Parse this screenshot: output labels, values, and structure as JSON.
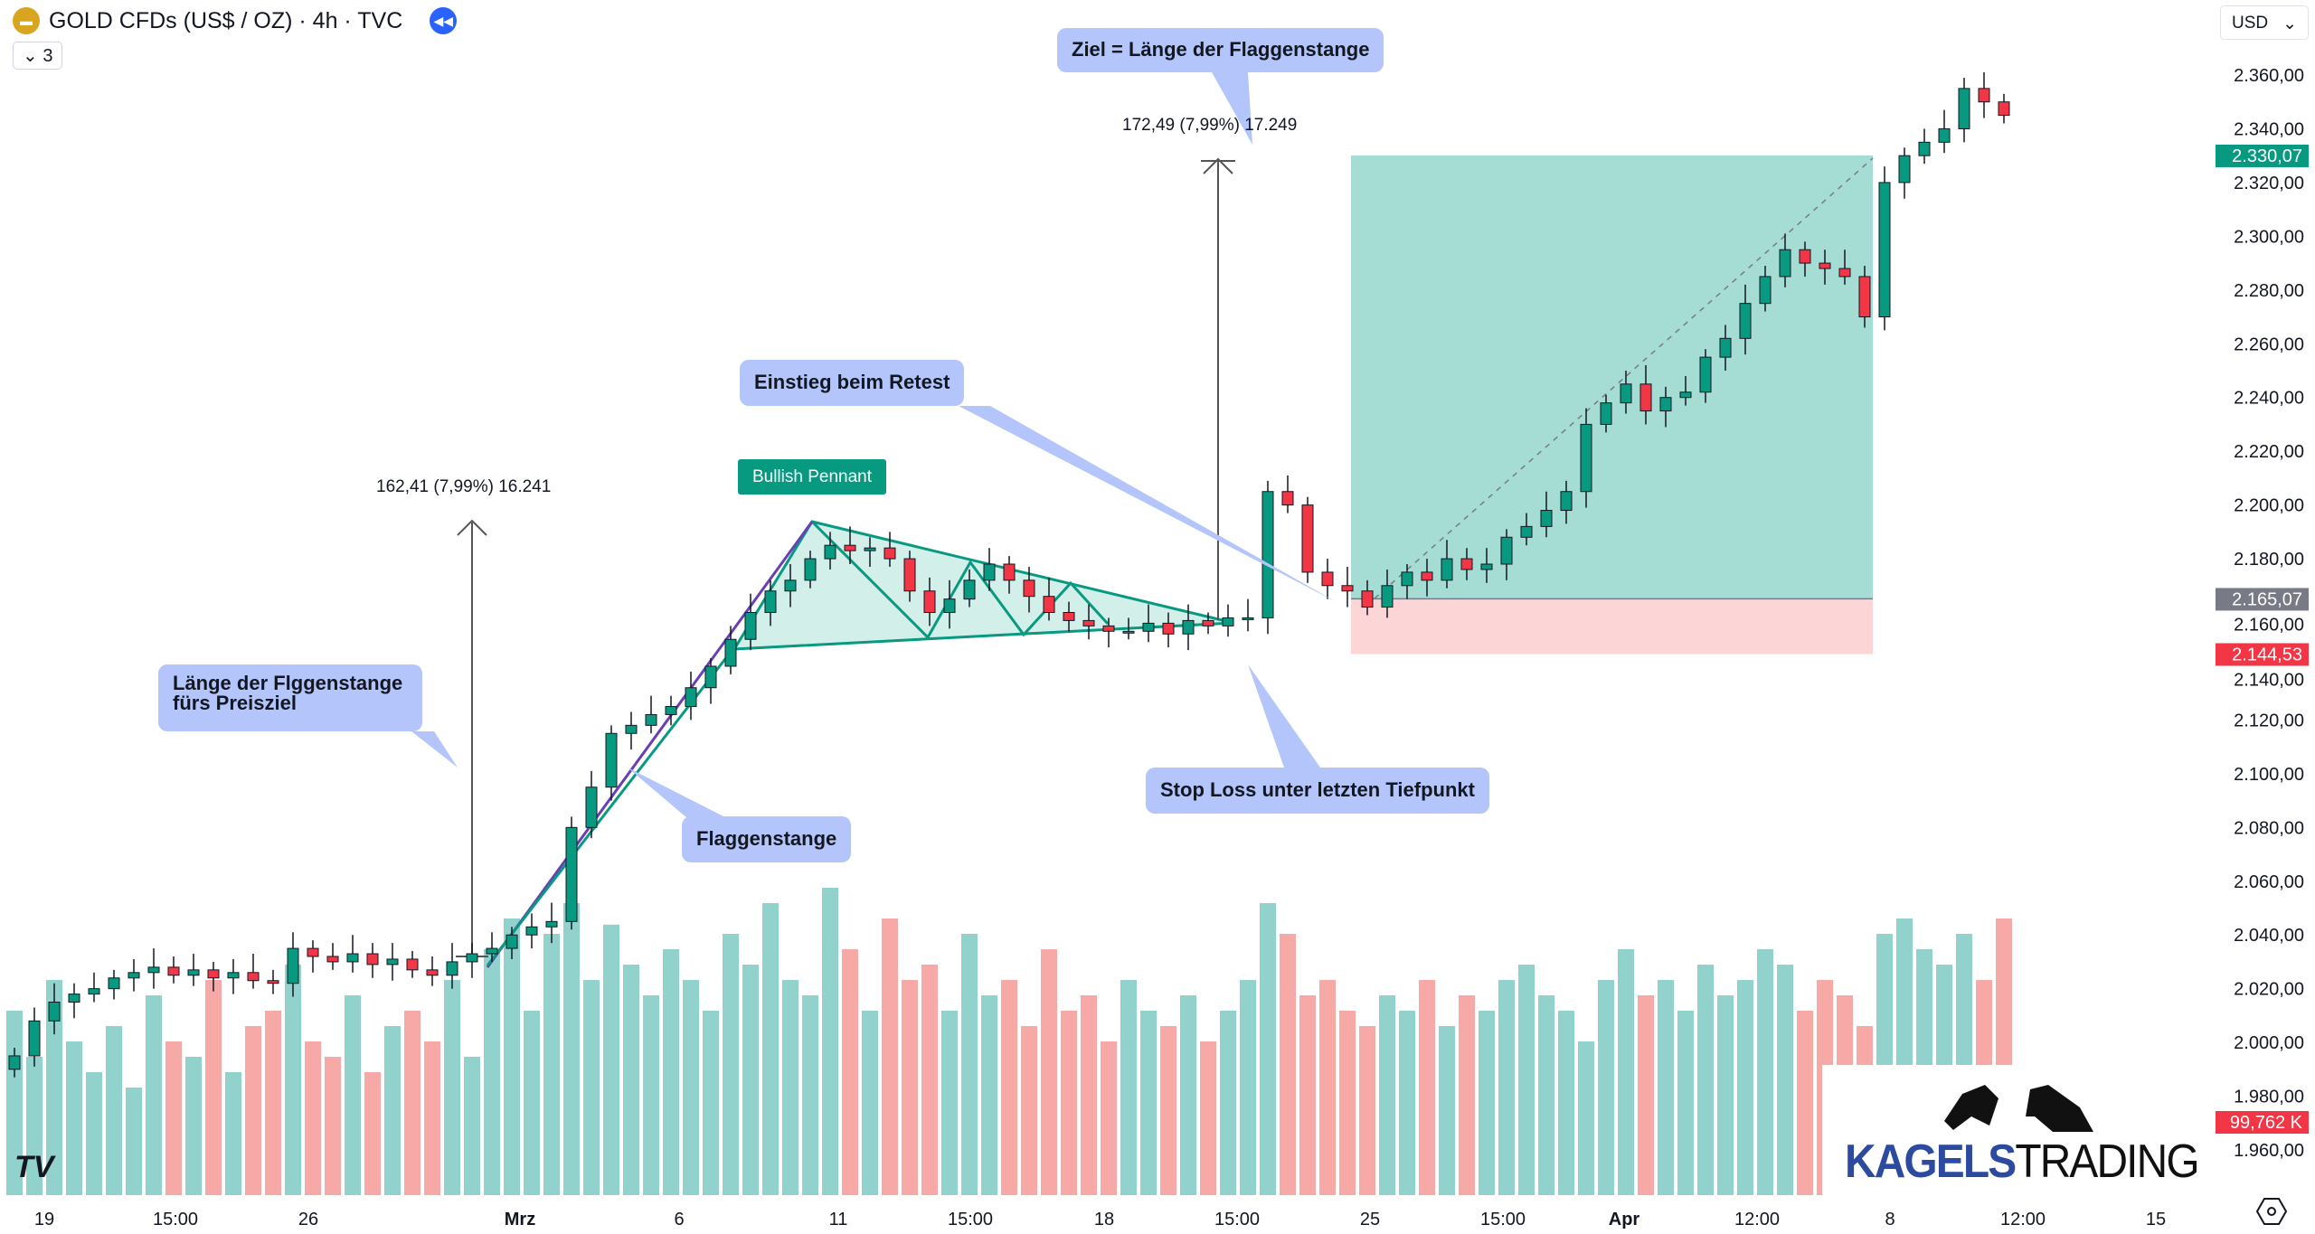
{
  "header": {
    "title": "GOLD CFDs (US$ / OZ) · 4h · TVC",
    "indicator_count": "3",
    "currency": "USD",
    "symbol_icon": "gold-bars-icon",
    "replay_icon": "rewind-icon"
  },
  "colors": {
    "up": "#089981",
    "down": "#f23645",
    "vol_up": "#92d2cc",
    "vol_down": "#f7a9a7",
    "target_zone": "#a5dcd4",
    "stop_zone": "#fcd6d6",
    "callout": "#b3c5fb",
    "pole": "#6a3fb5"
  },
  "annotations": {
    "target": "Ziel = Länge der Flaggenstange",
    "entry": "Einstieg beim Retest",
    "pole_length": "Länge der Flggenstange fürs Preisziel",
    "pole": "Flaggenstange",
    "stop": "Stop Loss unter letzten Tiefpunkt",
    "pattern": "Bullish Pennant",
    "measure1": "162,41 (7,99%) 16.241",
    "measure2": "172,49 (7,99%) 17.249"
  },
  "logo": {
    "part1": "KAGELS",
    "part2": "TRADING"
  },
  "chart_data": {
    "type": "candlestick",
    "ylim": [
      1950,
      2370
    ],
    "y_ticks": [
      "2.360,00",
      "2.340,00",
      "2.320,00",
      "2.300,00",
      "2.280,00",
      "2.260,00",
      "2.240,00",
      "2.220,00",
      "2.200,00",
      "2.180,00",
      "2.160,00",
      "2.140,00",
      "2.120,00",
      "2.100,00",
      "2.080,00",
      "2.060,00",
      "2.040,00",
      "2.020,00",
      "2.000,00",
      "1.980,00",
      "1.960,00"
    ],
    "y_tick_values": [
      2360,
      2340,
      2320,
      2300,
      2280,
      2260,
      2240,
      2220,
      2200,
      2180,
      2160,
      2140,
      2120,
      2100,
      2080,
      2060,
      2040,
      2020,
      2000,
      1980,
      1960
    ],
    "x_ticks": [
      "19",
      "15:00",
      "26",
      "Mrz",
      "6",
      "11",
      "15:00",
      "18",
      "15:00",
      "25",
      "15:00",
      "Apr",
      "12:00",
      "8",
      "12:00",
      "15"
    ],
    "price_badges": [
      {
        "value": 2330.07,
        "label": "2.330,07",
        "color": "#089981"
      },
      {
        "value": 2165.07,
        "label": "2.165,07",
        "color": "#787b86"
      },
      {
        "value": 2144.53,
        "label": "2.144,53",
        "color": "#f23645"
      }
    ],
    "volume_badge": "99,762 K",
    "closes": [
      1995,
      2008,
      2015,
      2018,
      2020,
      2024,
      2026,
      2028,
      2025,
      2027,
      2024,
      2026,
      2023,
      2022,
      2035,
      2032,
      2030,
      2033,
      2029,
      2031,
      2027,
      2025,
      2030,
      2033,
      2035,
      2040,
      2043,
      2045,
      2080,
      2095,
      2115,
      2118,
      2122,
      2125,
      2132,
      2140,
      2150,
      2160,
      2168,
      2172,
      2180,
      2185,
      2183,
      2184,
      2180,
      2168,
      2160,
      2165,
      2172,
      2178,
      2172,
      2166,
      2160,
      2157,
      2155,
      2153,
      2153,
      2156,
      2152,
      2157,
      2155,
      2158,
      2158,
      2205,
      2200,
      2175,
      2170,
      2168,
      2162,
      2170,
      2175,
      2172,
      2180,
      2176,
      2178,
      2188,
      2192,
      2198,
      2205,
      2230,
      2238,
      2245,
      2235,
      2240,
      2242,
      2255,
      2262,
      2275,
      2285,
      2295,
      2290,
      2288,
      2285,
      2270,
      2320,
      2330,
      2335,
      2340,
      2355,
      2350,
      2345
    ],
    "volumes": [
      60,
      45,
      70,
      50,
      40,
      55,
      35,
      65,
      50,
      45,
      70,
      40,
      55,
      60,
      75,
      50,
      45,
      65,
      40,
      55,
      60,
      50,
      70,
      45,
      80,
      90,
      60,
      85,
      95,
      70,
      88,
      75,
      65,
      80,
      70,
      60,
      85,
      75,
      95,
      70,
      65,
      100,
      80,
      60,
      90,
      70,
      75,
      60,
      85,
      65,
      70,
      55,
      80,
      60,
      65,
      50,
      70,
      60,
      55,
      65,
      50,
      60,
      70,
      95,
      85,
      65,
      70,
      60,
      55,
      65,
      60,
      70,
      55,
      65,
      60,
      70,
      75,
      65,
      60,
      50,
      70,
      80,
      65,
      70,
      60,
      75,
      65,
      70,
      80,
      75,
      60,
      70,
      65,
      55,
      85,
      90,
      80,
      75,
      85,
      70,
      90
    ],
    "long_position": {
      "entry": 2165.07,
      "target": 2330.07,
      "stop": 2144.53
    }
  }
}
